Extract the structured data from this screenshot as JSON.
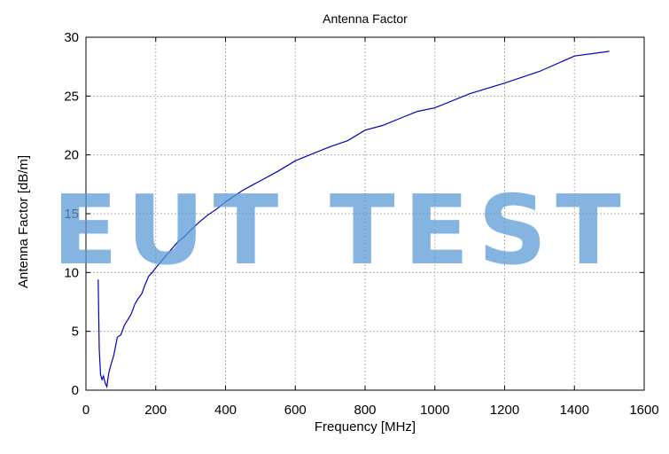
{
  "chart_data": {
    "type": "line",
    "title": "Antenna Factor",
    "xlabel": "Frequency [MHz]",
    "ylabel": "Antenna Factor [dB/m]",
    "xlim": [
      0,
      1600
    ],
    "ylim": [
      0,
      30
    ],
    "xticks": [
      0,
      200,
      400,
      600,
      800,
      1000,
      1200,
      1400,
      1600
    ],
    "yticks": [
      0,
      5,
      10,
      15,
      20,
      25,
      30
    ],
    "grid": true,
    "series_color": "#0000c0",
    "series": [
      {
        "x": [
          35,
          38,
          42,
          46,
          50,
          55,
          60,
          65,
          70,
          80,
          90,
          100,
          110,
          120,
          130,
          140,
          150,
          160,
          170,
          180,
          190,
          200,
          220,
          240,
          260,
          280,
          300,
          325,
          350,
          375,
          400,
          425,
          450,
          475,
          500,
          550,
          600,
          650,
          700,
          750,
          800,
          850,
          900,
          950,
          1000,
          1100,
          1200,
          1300,
          1400,
          1500
        ],
        "y": [
          9.4,
          3.5,
          1.3,
          0.9,
          1.2,
          0.6,
          0.3,
          1.4,
          2.0,
          3.0,
          4.5,
          4.7,
          5.5,
          6.0,
          6.5,
          7.3,
          7.8,
          8.2,
          9.0,
          9.7,
          10.0,
          10.4,
          11.1,
          11.8,
          12.5,
          13.0,
          13.6,
          14.3,
          14.9,
          15.4,
          16.0,
          16.5,
          17.0,
          17.4,
          17.8,
          18.6,
          19.5,
          20.1,
          20.7,
          21.2,
          22.1,
          22.5,
          23.1,
          23.7,
          24.0,
          25.2,
          26.1,
          27.1,
          28.4,
          28.8
        ]
      }
    ]
  },
  "watermark": {
    "text": "EUT TEST",
    "color": "#5b9bd5"
  }
}
